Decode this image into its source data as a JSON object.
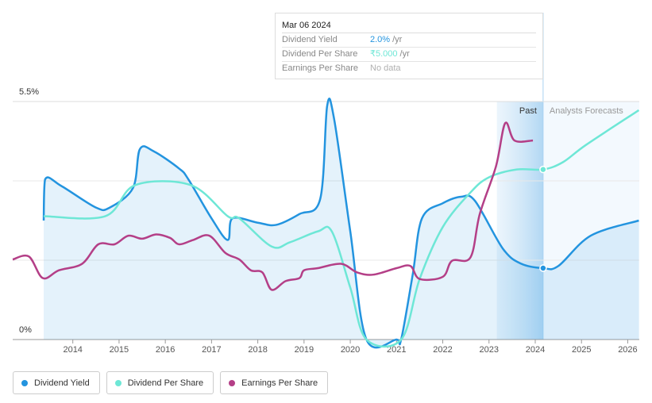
{
  "chart_data": {
    "type": "line",
    "xlim": [
      2012.7,
      2026.25
    ],
    "xticks": [
      2014,
      2015,
      2016,
      2017,
      2018,
      2019,
      2020,
      2021,
      2022,
      2023,
      2024,
      2025,
      2026
    ],
    "ylim": [
      0,
      5.5
    ],
    "yticks": [
      {
        "value": 0,
        "label": "0%"
      },
      {
        "value": 5.5,
        "label": "5.5%"
      }
    ],
    "grid": true,
    "divider_x": 2024.17,
    "past_label": "Past",
    "forecast_label": "Analysts Forecasts",
    "series": [
      {
        "name": "Dividend Yield",
        "color": "#2394df",
        "area": true,
        "x": [
          2013.37,
          2013.4,
          2013.75,
          2014.5,
          2014.8,
          2015.3,
          2015.45,
          2015.75,
          2016.3,
          2016.5,
          2017.0,
          2017.35,
          2017.45,
          2018.0,
          2018.4,
          2018.9,
          2019.35,
          2019.5,
          2019.65,
          2020.0,
          2020.35,
          2021.0,
          2021.1,
          2021.35,
          2021.55,
          2022.0,
          2022.4,
          2022.7,
          2023.3,
          2023.7,
          2024.17,
          2024.5,
          2025.2,
          2026.24
        ],
        "values": [
          2.75,
          3.7,
          3.55,
          3.05,
          3.05,
          3.5,
          4.4,
          4.35,
          3.95,
          3.7,
          2.8,
          2.3,
          2.8,
          2.7,
          2.65,
          2.9,
          3.25,
          5.4,
          5.1,
          2.5,
          0,
          0,
          0,
          1.5,
          2.8,
          3.15,
          3.3,
          3.2,
          2.1,
          1.75,
          1.65,
          1.7,
          2.4,
          2.75
        ]
      },
      {
        "name": "Dividend Per Share",
        "color": "#6ee7d6",
        "area": false,
        "x": [
          2013.37,
          2014.7,
          2015.35,
          2016.55,
          2017.35,
          2017.6,
          2018.3,
          2018.7,
          2019.3,
          2019.6,
          2020.0,
          2020.35,
          2021.1,
          2021.5,
          2022.0,
          2022.6,
          2023.0,
          2023.6,
          2024.17,
          2024.6,
          2025.1,
          2026.24
        ],
        "values": [
          2.85,
          2.85,
          3.57,
          3.57,
          2.85,
          2.8,
          2.15,
          2.25,
          2.5,
          2.5,
          1.2,
          0,
          0,
          1.4,
          2.6,
          3.4,
          3.75,
          3.93,
          3.93,
          4.1,
          4.5,
          5.3
        ]
      },
      {
        "name": "Earnings Per Share",
        "color": "#b43f87",
        "area": false,
        "x": [
          2012.7,
          2013.05,
          2013.35,
          2013.7,
          2014.2,
          2014.55,
          2014.9,
          2015.2,
          2015.5,
          2015.8,
          2016.1,
          2016.3,
          2016.6,
          2016.95,
          2017.3,
          2017.6,
          2017.85,
          2018.1,
          2018.3,
          2018.6,
          2018.9,
          2019.0,
          2019.3,
          2019.8,
          2020.15,
          2020.5,
          2021.0,
          2021.3,
          2021.5,
          2022.0,
          2022.2,
          2022.6,
          2022.8,
          2023.15,
          2023.35,
          2023.55,
          2023.95
        ],
        "values": [
          1.85,
          1.92,
          1.42,
          1.6,
          1.75,
          2.2,
          2.2,
          2.4,
          2.33,
          2.43,
          2.35,
          2.2,
          2.3,
          2.4,
          2.0,
          1.85,
          1.6,
          1.55,
          1.15,
          1.35,
          1.42,
          1.6,
          1.65,
          1.75,
          1.55,
          1.5,
          1.65,
          1.7,
          1.4,
          1.45,
          1.82,
          1.9,
          2.9,
          4.0,
          5.0,
          4.6,
          4.6
        ]
      }
    ],
    "tooltip": {
      "date": "Mar 06 2024",
      "rows": [
        {
          "label": "Dividend Yield",
          "value": "2.0%",
          "unit": "/yr",
          "color": "#2394df"
        },
        {
          "label": "Dividend Per Share",
          "value": "₹5.000",
          "unit": "/yr",
          "color": "#6ee7d6"
        },
        {
          "label": "Earnings Per Share",
          "value": "No data",
          "color": "#b0b0b0"
        }
      ]
    }
  }
}
